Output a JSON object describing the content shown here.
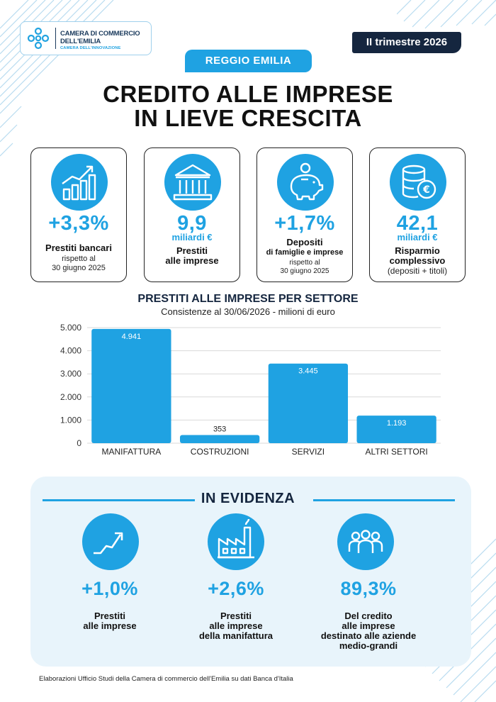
{
  "header": {
    "logo_line1": "CAMERA DI COMMERCIO",
    "logo_line2": "DELL'EMILIA",
    "logo_line3": "CAMERA DELL'INNOVAZIONE",
    "quarter": "II trimestre 2026",
    "city": "REGGIO EMILIA",
    "title_line1": "CREDITO ALLE IMPRESE",
    "title_line2": "IN LIEVE CRESCITA"
  },
  "kpis": [
    {
      "icon": "bar-chart-growth-icon",
      "value": "+3,3%",
      "unit": "",
      "label1": "Prestiti bancari",
      "label2": "",
      "sub1": "rispetto al",
      "sub2": "30 giugno 2025"
    },
    {
      "icon": "bank-building-icon",
      "value": "9,9",
      "unit": "miliardi €",
      "label1": "Prestiti",
      "label2": "alle imprese",
      "sub1": "",
      "sub2": ""
    },
    {
      "icon": "piggy-bank-icon",
      "value": "+1,7%",
      "unit": "",
      "label1": "Depositi",
      "label2": "di famiglie e imprese",
      "sub1": "rispetto al",
      "sub2": "30 giugno 2025"
    },
    {
      "icon": "coin-stack-euro-icon",
      "value": "42,1",
      "unit": "miliardi €",
      "label1": "Risparmio",
      "label2": "complessivo",
      "sub1": "(depositi + titoli)",
      "sub2": ""
    }
  ],
  "chart": {
    "title": "PRESTITI ALLE IMPRESE PER SETTORE",
    "subtitle": "Consistenze al 30/06/2026 - milioni di euro"
  },
  "chart_data": {
    "type": "bar",
    "title": "PRESTITI ALLE IMPRESE PER SETTORE",
    "subtitle": "Consistenze al 30/06/2026 - milioni di euro",
    "categories": [
      "MANIFATTURA",
      "COSTRUZIONI",
      "SERVIZI",
      "ALTRI SETTORI"
    ],
    "values": [
      4941,
      353,
      3445,
      1193
    ],
    "value_labels": [
      "4.941",
      "353",
      "3.445",
      "1.193"
    ],
    "yticks": [
      0,
      1000,
      2000,
      3000,
      4000,
      5000
    ],
    "ytick_labels": [
      "0",
      "1.000",
      "2.000",
      "3.000",
      "4.000",
      "5.000"
    ],
    "ylim": [
      0,
      5000
    ],
    "grid": true,
    "bar_color": "#1fa2e2"
  },
  "evidenza": {
    "title": "IN EVIDENZA",
    "items": [
      {
        "icon": "trend-up-arrow-icon",
        "value": "+1,0%",
        "lines": [
          "Prestiti",
          "alle imprese"
        ]
      },
      {
        "icon": "factory-icon",
        "value": "+2,6%",
        "lines": [
          "Prestiti",
          "alle imprese",
          "della manifattura"
        ]
      },
      {
        "icon": "people-group-icon",
        "value": "89,3%",
        "lines": [
          "Del credito",
          "alle imprese",
          "destinato alle aziende",
          "medio-grandi"
        ]
      }
    ]
  },
  "footer": "Elaborazioni Ufficio Studi della Camera di commercio dell'Emilia su dati Banca d'Italia",
  "colors": {
    "accent": "#1fa2e2",
    "navy": "#15263f",
    "panel": "#e8f4fb"
  }
}
